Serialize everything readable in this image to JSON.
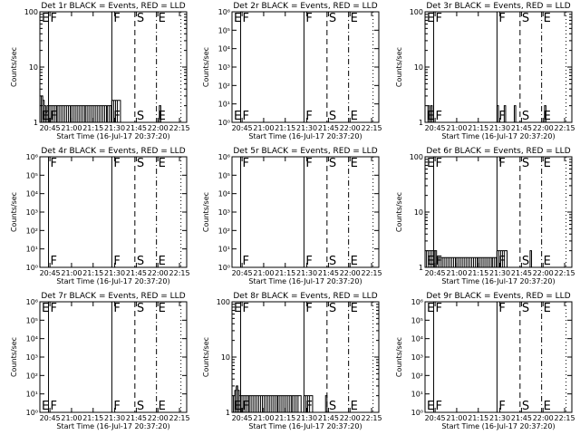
{
  "figure": {
    "xlabel": "Start Time (16-Jul-17 20:37:20)",
    "ylabel": "Counts/sec",
    "x_tick_labels": [
      "20:45",
      "21:00",
      "21:15",
      "21:30",
      "21:45",
      "22:00",
      "22:15"
    ],
    "x_tick_minutes": [
      465,
      480,
      495,
      510,
      525,
      540,
      555
    ],
    "x_range_minutes": [
      458,
      560
    ],
    "colors": {
      "events": "#000000",
      "lld": "#ff0000",
      "background": "#ffffff"
    }
  },
  "chart_data": [
    {
      "type": "line",
      "title": "Det 1r BLACK = Events, RED = LLD",
      "y_scale": "log",
      "ylim": [
        1,
        100
      ],
      "y_tick_labels": [
        "1",
        "10",
        "100"
      ],
      "flags": [
        {
          "label": "E",
          "minute": 458,
          "style": "dotted"
        },
        {
          "label": "F",
          "minute": 464,
          "style": "solid"
        },
        {
          "label": "F",
          "minute": 508,
          "style": "solid"
        },
        {
          "label": "S",
          "minute": 524,
          "style": "dashed"
        },
        {
          "label": "E",
          "minute": 539,
          "style": "dashdot"
        },
        {
          "label": "",
          "minute": 556,
          "style": "dotted"
        }
      ],
      "series": [
        {
          "points": [
            [
              459,
              3
            ],
            [
              460,
              2.5
            ],
            [
              461,
              2
            ],
            [
              462,
              1.5
            ],
            [
              463,
              2
            ],
            [
              470,
              2
            ],
            [
              480,
              2
            ],
            [
              490,
              2
            ],
            [
              505,
              2
            ],
            [
              508,
              2.5
            ],
            [
              513,
              2.5
            ],
            [
              514,
              1
            ],
            [
              540,
              1
            ],
            [
              541,
              2
            ],
            [
              542,
              1
            ]
          ]
        }
      ]
    },
    {
      "type": "line",
      "title": "Det 2r BLACK = Events, RED = LLD",
      "y_scale": "log",
      "ylim": [
        1,
        1000000
      ],
      "y_tick_labels": [
        "10⁰",
        "10¹",
        "10²",
        "10³",
        "10⁴",
        "10⁵",
        "10⁶"
      ],
      "flags": [
        {
          "label": "E",
          "minute": 458,
          "style": "dotted"
        },
        {
          "label": "F",
          "minute": 464,
          "style": "solid"
        },
        {
          "label": "F",
          "minute": 508,
          "style": "solid"
        },
        {
          "label": "S",
          "minute": 524,
          "style": "dashed"
        },
        {
          "label": "E",
          "minute": 539,
          "style": "dashdot"
        },
        {
          "label": "",
          "minute": 556,
          "style": "dotted"
        }
      ],
      "series": []
    },
    {
      "type": "line",
      "title": "Det 3r BLACK = Events, RED = LLD",
      "y_scale": "log",
      "ylim": [
        1,
        100
      ],
      "y_tick_labels": [
        "1",
        "10",
        "100"
      ],
      "flags": [
        {
          "label": "E",
          "minute": 458,
          "style": "dotted"
        },
        {
          "label": "F",
          "minute": 464,
          "style": "solid"
        },
        {
          "label": "F",
          "minute": 508,
          "style": "solid"
        },
        {
          "label": "S",
          "minute": 524,
          "style": "dashed"
        },
        {
          "label": "E",
          "minute": 539,
          "style": "dashdot"
        },
        {
          "label": "",
          "minute": 556,
          "style": "dotted"
        }
      ],
      "series": [
        {
          "points": [
            [
              459,
              1
            ],
            [
              460,
              2
            ],
            [
              461,
              1
            ],
            [
              462,
              2
            ],
            [
              463,
              1
            ],
            [
              470,
              1
            ],
            [
              500,
              1
            ],
            [
              507,
              1
            ],
            [
              508,
              2
            ],
            [
              509,
              1
            ],
            [
              512,
              1
            ],
            [
              513,
              2
            ],
            [
              514,
              1
            ],
            [
              519,
              1
            ],
            [
              520,
              2
            ],
            [
              521,
              1
            ],
            [
              540,
              1
            ],
            [
              541,
              2
            ],
            [
              542,
              1
            ]
          ]
        }
      ]
    },
    {
      "type": "line",
      "title": "Det 4r BLACK = Events, RED = LLD",
      "y_scale": "log",
      "ylim": [
        1,
        1000000
      ],
      "y_tick_labels": [
        "10⁰",
        "10¹",
        "10²",
        "10³",
        "10⁴",
        "10⁵",
        "10⁶"
      ],
      "flags": [
        {
          "label": "",
          "minute": 458,
          "style": "dotted"
        },
        {
          "label": "F",
          "minute": 464,
          "style": "solid"
        },
        {
          "label": "F",
          "minute": 508,
          "style": "solid"
        },
        {
          "label": "S",
          "minute": 524,
          "style": "dashed"
        },
        {
          "label": "E",
          "minute": 539,
          "style": "dashdot"
        },
        {
          "label": "",
          "minute": 556,
          "style": "dotted"
        }
      ],
      "series": []
    },
    {
      "type": "line",
      "title": "Det 5r BLACK = Events, RED = LLD",
      "y_scale": "log",
      "ylim": [
        1,
        1000000
      ],
      "y_tick_labels": [
        "10⁰",
        "10¹",
        "10²",
        "10³",
        "10⁴",
        "10⁵",
        "10⁶"
      ],
      "flags": [
        {
          "label": "",
          "minute": 458,
          "style": "dotted"
        },
        {
          "label": "F",
          "minute": 464,
          "style": "solid"
        },
        {
          "label": "F",
          "minute": 508,
          "style": "solid"
        },
        {
          "label": "S",
          "minute": 524,
          "style": "dashed"
        },
        {
          "label": "E",
          "minute": 539,
          "style": "dashdot"
        },
        {
          "label": "",
          "minute": 556,
          "style": "dotted"
        }
      ],
      "series": []
    },
    {
      "type": "line",
      "title": "Det 6r BLACK = Events, RED = LLD",
      "y_scale": "log",
      "ylim": [
        1,
        100
      ],
      "y_tick_labels": [
        "1",
        "10",
        "100"
      ],
      "flags": [
        {
          "label": "E",
          "minute": 458,
          "style": "dotted"
        },
        {
          "label": "F",
          "minute": 464,
          "style": "solid"
        },
        {
          "label": "F",
          "minute": 508,
          "style": "solid"
        },
        {
          "label": "S",
          "minute": 524,
          "style": "dashed"
        },
        {
          "label": "E",
          "minute": 539,
          "style": "dashdot"
        },
        {
          "label": "",
          "minute": 556,
          "style": "dotted"
        }
      ],
      "series": [
        {
          "points": [
            [
              459,
              2
            ],
            [
              465,
              2
            ],
            [
              466,
              1.5
            ],
            [
              470,
              1.5
            ],
            [
              480,
              1.5
            ],
            [
              495,
              1.5
            ],
            [
              505,
              1.5
            ],
            [
              508,
              2
            ],
            [
              514,
              2
            ],
            [
              515,
              1
            ],
            [
              530,
              1
            ],
            [
              531,
              2
            ],
            [
              532,
              1
            ]
          ]
        }
      ]
    },
    {
      "type": "line",
      "title": "Det 7r BLACK = Events, RED = LLD",
      "y_scale": "log",
      "ylim": [
        1,
        1000000
      ],
      "y_tick_labels": [
        "10⁰",
        "10¹",
        "10²",
        "10³",
        "10⁴",
        "10⁵",
        "10⁶"
      ],
      "flags": [
        {
          "label": "E",
          "minute": 458,
          "style": "dotted"
        },
        {
          "label": "F",
          "minute": 464,
          "style": "solid"
        },
        {
          "label": "F",
          "minute": 508,
          "style": "solid"
        },
        {
          "label": "S",
          "minute": 524,
          "style": "dashed"
        },
        {
          "label": "E",
          "minute": 539,
          "style": "dashdot"
        },
        {
          "label": "",
          "minute": 556,
          "style": "dotted"
        }
      ],
      "series": []
    },
    {
      "type": "line",
      "title": "Det 8r BLACK = Events, RED = LLD",
      "y_scale": "log",
      "ylim": [
        1,
        100
      ],
      "y_tick_labels": [
        "1",
        "10",
        "100"
      ],
      "flags": [
        {
          "label": "E",
          "minute": 458,
          "style": "dotted"
        },
        {
          "label": "F",
          "minute": 464,
          "style": "solid"
        },
        {
          "label": "F",
          "minute": 508,
          "style": "solid"
        },
        {
          "label": "S",
          "minute": 524,
          "style": "dashed"
        },
        {
          "label": "E",
          "minute": 539,
          "style": "dashdot"
        },
        {
          "label": "",
          "minute": 556,
          "style": "dotted"
        }
      ],
      "series": [
        {
          "points": [
            [
              459,
              2
            ],
            [
              460,
              2.5
            ],
            [
              461,
              3
            ],
            [
              462,
              2.5
            ],
            [
              463,
              2
            ],
            [
              470,
              2
            ],
            [
              490,
              2
            ],
            [
              500,
              2
            ],
            [
              505,
              2
            ],
            [
              506,
              1
            ],
            [
              508,
              2
            ],
            [
              513,
              2
            ],
            [
              514,
              1
            ],
            [
              522,
              1
            ],
            [
              523,
              2
            ],
            [
              524,
              1
            ]
          ]
        }
      ]
    },
    {
      "type": "line",
      "title": "Det 9r BLACK = Events, RED = LLD",
      "y_scale": "log",
      "ylim": [
        1,
        1000000
      ],
      "y_tick_labels": [
        "10⁰",
        "10¹",
        "10²",
        "10³",
        "10⁴",
        "10⁵",
        "10⁶"
      ],
      "flags": [
        {
          "label": "E",
          "minute": 458,
          "style": "dotted"
        },
        {
          "label": "F",
          "minute": 464,
          "style": "solid"
        },
        {
          "label": "F",
          "minute": 508,
          "style": "solid"
        },
        {
          "label": "S",
          "minute": 524,
          "style": "dashed"
        },
        {
          "label": "E",
          "minute": 539,
          "style": "dashdot"
        },
        {
          "label": "",
          "minute": 556,
          "style": "dotted"
        }
      ],
      "series": []
    }
  ]
}
